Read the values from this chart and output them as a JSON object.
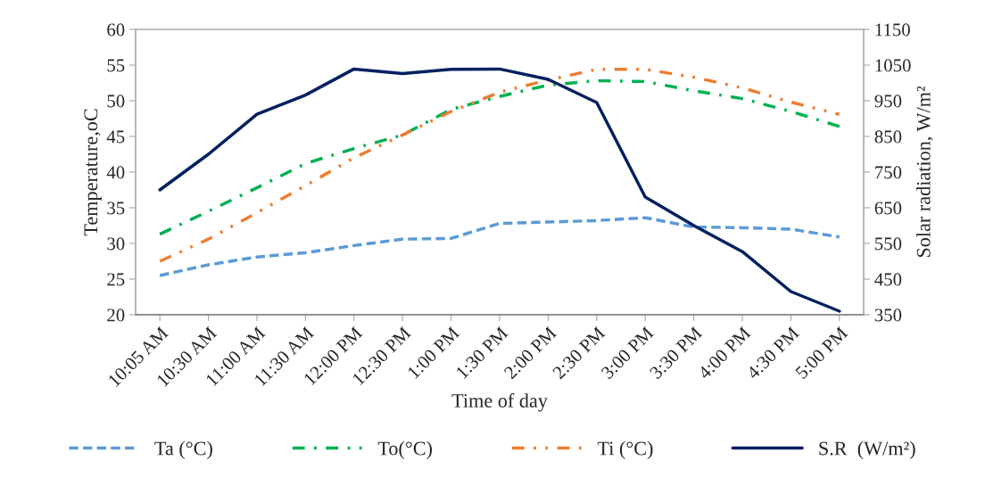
{
  "chart_data": {
    "type": "line",
    "xlabel": "Time of day",
    "ylabel": "Temperature,oC",
    "y2label": "Solar radiation, W/m²",
    "categories": [
      "10:05 AM",
      "10:30 AM",
      "11:00 AM",
      "11:30 AM",
      "12:00 PM",
      "12:30 PM",
      "1:00 PM",
      "1:30 PM",
      "2:00 PM",
      "2:30 PM",
      "3:00 PM",
      "3:30 PM",
      "4:00 PM",
      "4:30 PM",
      "5:00 PM"
    ],
    "series": [
      {
        "name": "Ta (°C)",
        "color": "#5b9bd5",
        "line_style": "dashed",
        "values": [
          25.5,
          27.0,
          28.1,
          28.7,
          29.7,
          30.6,
          30.7,
          32.8,
          33.0,
          33.2,
          33.6,
          32.3,
          32.2,
          32.0,
          30.9
        ]
      },
      {
        "name": "To(°C)",
        "color": "#00b050",
        "line_style": "dashdot",
        "values": [
          31.3,
          34.5,
          37.8,
          41.2,
          43.3,
          45.2,
          48.8,
          50.6,
          52.2,
          52.8,
          52.7,
          51.4,
          50.3,
          48.5,
          46.4
        ]
      },
      {
        "name": "Ti (°C)",
        "color": "#ed7d31",
        "line_style": "dashdotdot",
        "values": [
          27.5,
          30.6,
          34.3,
          38.1,
          42.0,
          45.2,
          48.5,
          51.2,
          52.9,
          54.4,
          54.4,
          53.3,
          51.8,
          49.8,
          48.1
        ]
      },
      {
        "name": "S.R  (W/m²)",
        "color": "#002060",
        "line_style": "solid",
        "axis": "y2",
        "values": [
          700,
          800,
          912,
          966,
          1039,
          1026,
          1038,
          1039,
          1010,
          945,
          680,
          600,
          527,
          415,
          360
        ]
      }
    ],
    "ylim": [
      20,
      60
    ],
    "yticks": [
      20,
      25,
      30,
      35,
      40,
      45,
      50,
      55,
      60
    ],
    "y2lim": [
      350,
      1150
    ],
    "y2ticks": [
      350,
      450,
      550,
      650,
      750,
      850,
      950,
      1050,
      1150
    ],
    "grid": false,
    "legend": "bottom"
  }
}
